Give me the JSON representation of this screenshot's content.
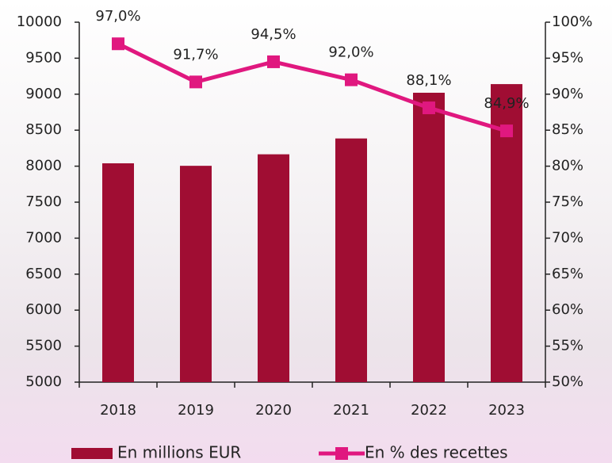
{
  "chart_data": {
    "type": "bar",
    "categories": [
      "2018",
      "2019",
      "2020",
      "2021",
      "2022",
      "2023"
    ],
    "series": [
      {
        "name": "En millions EUR",
        "type": "bar",
        "color": "#a00d33",
        "values": [
          8040,
          8005,
          8165,
          8385,
          9020,
          9140
        ]
      },
      {
        "name": "En % des recettes",
        "type": "line",
        "axis": "y2",
        "color": "#e0187f",
        "values": [
          97.0,
          91.7,
          94.5,
          92.0,
          88.1,
          84.9
        ],
        "value_labels": [
          "97,0%",
          "91,7%",
          "94,5%",
          "92,0%",
          "88,1%",
          "84,9%"
        ]
      }
    ],
    "ylim": [
      5000,
      10000
    ],
    "yticks": [
      5000,
      5500,
      6000,
      6500,
      7000,
      7500,
      8000,
      8500,
      9000,
      9500,
      10000
    ],
    "y2lim": [
      50,
      100
    ],
    "y2ticks": [
      {
        "value": 50,
        "label": "50%"
      },
      {
        "value": 55,
        "label": "55%"
      },
      {
        "value": 60,
        "label": "60%"
      },
      {
        "value": 65,
        "label": "65%"
      },
      {
        "value": 70,
        "label": "70%"
      },
      {
        "value": 75,
        "label": "75%"
      },
      {
        "value": 80,
        "label": "80%"
      },
      {
        "value": 85,
        "label": "85%"
      },
      {
        "value": 90,
        "label": "90%"
      },
      {
        "value": 95,
        "label": "95%"
      },
      {
        "value": 100,
        "label": "100%"
      }
    ],
    "grid": false,
    "legend": "bottom"
  }
}
